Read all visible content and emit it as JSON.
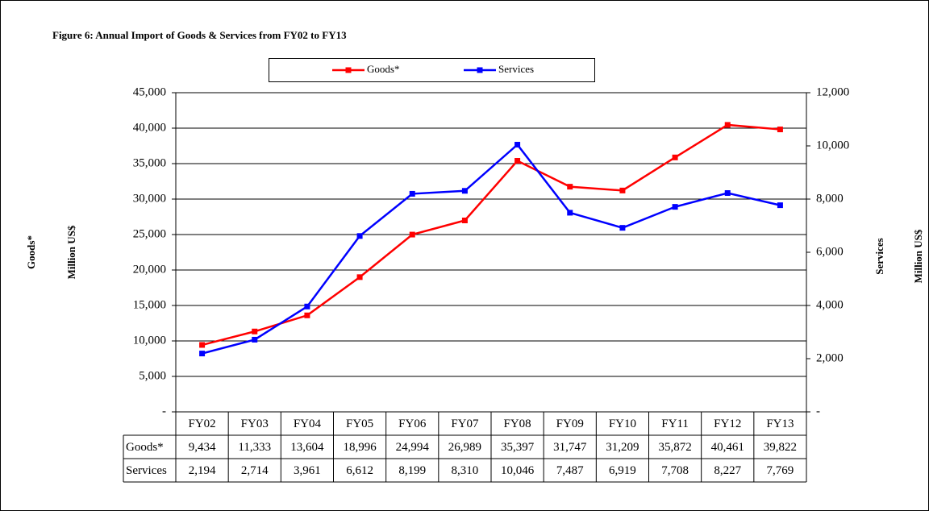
{
  "chart_data": {
    "type": "line",
    "title": "Figure 6: Annual Import of Goods & Services from  FY02 to FY13",
    "categories": [
      "FY02",
      "FY03",
      "FY04",
      "FY05",
      "FY06",
      "FY07",
      "FY08",
      "FY09",
      "FY10",
      "FY11",
      "FY12",
      "FY13"
    ],
    "series": [
      {
        "name": "Goods*",
        "color": "#ff0000",
        "axis": "y",
        "values": [
          9434,
          11333,
          13604,
          18996,
          24994,
          26989,
          35397,
          31747,
          31209,
          35872,
          40461,
          39822
        ],
        "value_labels": [
          "9,434",
          "11,333",
          "13,604",
          "18,996",
          "24,994",
          "26,989",
          "35,397",
          "31,747",
          "31,209",
          "35,872",
          "40,461",
          "39,822"
        ]
      },
      {
        "name": "Services",
        "color": "#0000ff",
        "axis": "y2",
        "values": [
          2194,
          2714,
          3961,
          6612,
          8199,
          8310,
          10046,
          7487,
          6919,
          7708,
          8227,
          7769
        ],
        "value_labels": [
          "2,194",
          "2,714",
          "3,961",
          "6,612",
          "8,199",
          "8,310",
          "10,046",
          "7,487",
          "6,919",
          "7,708",
          "8,227",
          "7,769"
        ]
      }
    ],
    "ylabel": [
      "Goods*",
      "Million US$"
    ],
    "y2label": [
      "Services",
      "Million US$"
    ],
    "ylim": [
      0,
      45000
    ],
    "yticks": [
      {
        "value": 0,
        "label": "-"
      },
      {
        "value": 5000,
        "label": "5,000"
      },
      {
        "value": 10000,
        "label": "10,000"
      },
      {
        "value": 15000,
        "label": "15,000"
      },
      {
        "value": 20000,
        "label": "20,000"
      },
      {
        "value": 25000,
        "label": "25,000"
      },
      {
        "value": 30000,
        "label": "30,000"
      },
      {
        "value": 35000,
        "label": "35,000"
      },
      {
        "value": 40000,
        "label": "40,000"
      },
      {
        "value": 45000,
        "label": "45,000"
      }
    ],
    "y2lim": [
      0,
      12000
    ],
    "y2ticks": [
      {
        "value": 0,
        "label": "-"
      },
      {
        "value": 2000,
        "label": "2,000"
      },
      {
        "value": 4000,
        "label": "4,000"
      },
      {
        "value": 6000,
        "label": "6,000"
      },
      {
        "value": 8000,
        "label": "8,000"
      },
      {
        "value": 10000,
        "label": "10,000"
      },
      {
        "value": 12000,
        "label": "12,000"
      }
    ],
    "grid": true,
    "legend": "top"
  }
}
